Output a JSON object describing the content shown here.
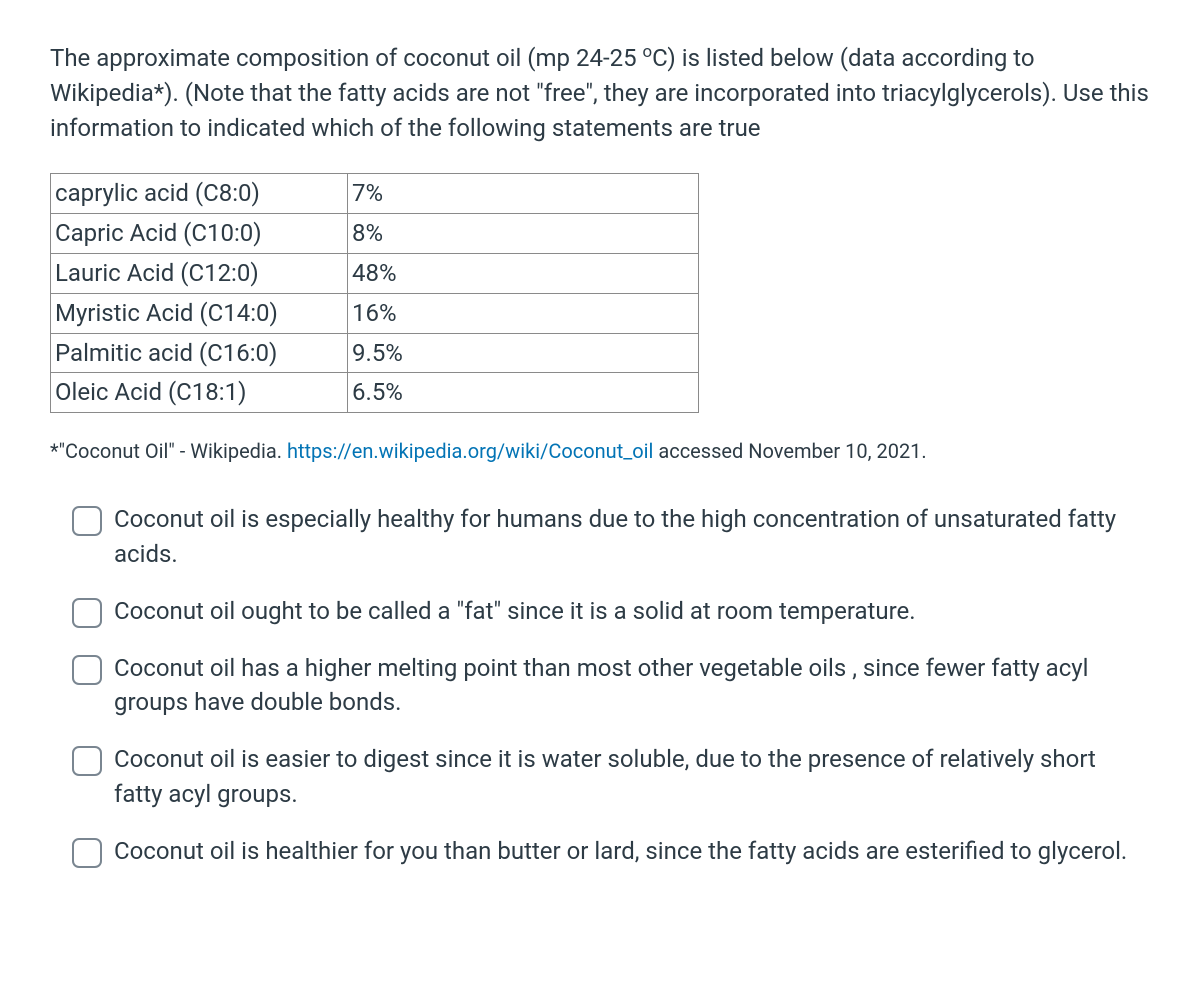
{
  "intro_html": "The approximate composition of coconut oil (mp 24-25 <sup>o</sup>C) is listed below (data according to Wikipedia*).  (Note that the fatty acids are not \"free\", they are incorporated into triacylglycerols).  Use this information to indicated which of the following statements are true",
  "table": {
    "rows": [
      {
        "name": "caprylic acid (C8:0)",
        "value": "7%"
      },
      {
        "name": "Capric Acid (C10:0)",
        "value": "8%"
      },
      {
        "name": "Lauric Acid (C12:0)",
        "value": "48%"
      },
      {
        "name": "Myristic Acid (C14:0)",
        "value": "16%"
      },
      {
        "name": "Palmitic acid (C16:0)",
        "value": "9.5%"
      },
      {
        "name": "Oleic Acid (C18:1)",
        "value": "6.5%"
      }
    ]
  },
  "citation": {
    "prefix": "*\"Coconut Oil\" - Wikipedia.  ",
    "link_text": "https://en.wikipedia.org/wiki/Coconut_oil",
    "link_href": "https://en.wikipedia.org/wiki/Coconut_oil",
    "suffix": " accessed November 10, 2021."
  },
  "options": [
    "Coconut oil is especially healthy for humans due to the high concentration of unsaturated fatty acids.",
    "Coconut oil ought to be called a \"fat\" since it is a solid at room temperature.",
    "Coconut oil has a higher melting point than most other vegetable oils , since fewer fatty acyl groups have double bonds.",
    "Coconut oil is easier to digest since it is water soluble, due to the presence of relatively short fatty acyl groups.",
    "Coconut oil is healthier for you than butter or lard, since the fatty acids are esterified to glycerol."
  ]
}
